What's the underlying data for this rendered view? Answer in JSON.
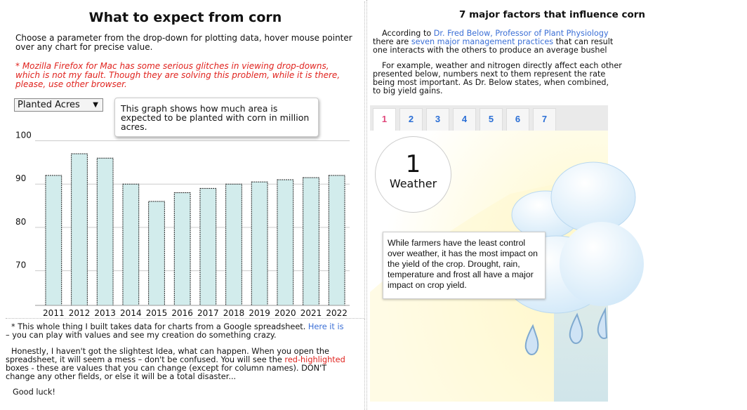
{
  "left": {
    "title": "What to expect from corn",
    "intro": "Choose a parameter from the drop-down for plotting data, hover mouse pointer over any chart for precise value.",
    "warning": "* Mozilla Firefox for Mac has some serious glitches in viewing drop-downs, which is not my fault. Though they are solving this problem, while it is there, please, use other browser.",
    "select_value": "Planted Acres",
    "tooltip": "This graph shows how much area is expected to be planted with corn in million acres."
  },
  "chart_data": {
    "type": "bar",
    "categories": [
      "2011",
      "2012",
      "2013",
      "2014",
      "2015",
      "2016",
      "2017",
      "2018",
      "2019",
      "2020",
      "2021",
      "2022"
    ],
    "values": [
      92,
      97,
      96,
      90,
      86,
      88,
      89,
      90,
      90.5,
      91,
      91.5,
      92
    ],
    "yticks": [
      "100",
      "90",
      "80",
      "70"
    ],
    "ylim": [
      62,
      103
    ],
    "bar_color": "#d2ecec",
    "grid": true
  },
  "footer": {
    "p1_text": "* This whole thing I built takes data for charts from a Google spreadsheet. ",
    "p1_link": "Here it is",
    "p1_tail": " – you can play with values and see my creation do something crazy.",
    "p2_text": "Honestly, I haven't got the slightest Idea, what can happen. When you open the spreadsheet, it will seem a mess – don't be confused. You will see the ",
    "p2_red": "red-highlighted",
    "p2_tail": " boxes - these are values that you can change (except for column names). DON'T change any other fields, or else it will be a total disaster...",
    "p3": "Good luck!"
  },
  "right": {
    "title": "7 major factors that influence corn",
    "p1_a": "According to ",
    "p1_link": "Dr. Fred Below, Professor of Plant Physiology",
    "p1_line2_a": "there are ",
    "p1_link2": "seven major management practices",
    "p1_line2_b": " that can result",
    "p1_line3": "one interacts with the others to produce an average bushel",
    "p2_line1": "For example, weather and nitrogen directly affect each other",
    "p2_line2": "presented below, numbers next to them represent the rate",
    "p2_line3": "being most important. As Dr. Below states, when combined,",
    "p2_line4": "to big yield gains.",
    "tabs": [
      "1",
      "2",
      "3",
      "4",
      "5",
      "6",
      "7"
    ],
    "factor_number": "1",
    "factor_name": "Weather",
    "factor_desc": "While farmers have the least control over weather, it has the most impact on the yield of the crop. Drought, rain, temperature and frost all have a major impact on crop yield.",
    "colors": {
      "link": "#3b6fd6",
      "active_tab": "#e0467a",
      "tab": "#2b6fd6",
      "warning": "#e0231e"
    }
  }
}
